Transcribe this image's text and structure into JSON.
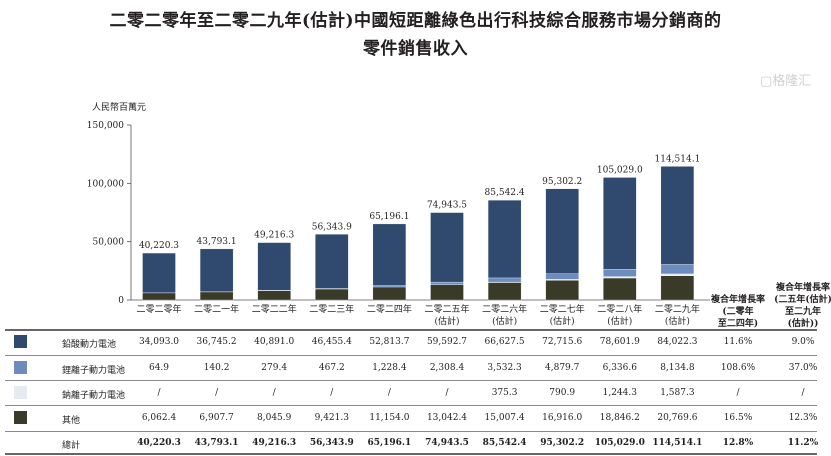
{
  "title_line1": "二零二零年至二零二九年(估計)中國短距離綠色出行科技綜合服務市場分銷商的",
  "title_line2": "零件銷售收入",
  "chart_data": {
    "type": "bar",
    "stacked": true,
    "ylabel": "人民幣百萬元",
    "ylim": [
      0,
      150000
    ],
    "yticks": [
      0,
      50000,
      100000,
      150000
    ],
    "ytick_labels": [
      "0",
      "50,000",
      "100,000",
      "150,000"
    ],
    "categories": [
      {
        "line1": "二零二零年",
        "line2": ""
      },
      {
        "line1": "二零二一年",
        "line2": ""
      },
      {
        "line1": "二零二二年",
        "line2": ""
      },
      {
        "line1": "二零二三年",
        "line2": ""
      },
      {
        "line1": "二零二四年",
        "line2": ""
      },
      {
        "line1": "二零二五年",
        "line2": "(估計)"
      },
      {
        "line1": "二零二六年",
        "line2": "(估計)"
      },
      {
        "line1": "二零二七年",
        "line2": "(估計)"
      },
      {
        "line1": "二零二八年",
        "line2": "(估計)"
      },
      {
        "line1": "二零二九年",
        "line2": "(估計)"
      }
    ],
    "series": [
      {
        "name": "鉛酸動力電池",
        "color": "#2f4a6e",
        "values": [
          34093.0,
          36745.2,
          40891.0,
          46455.4,
          52813.7,
          59592.7,
          66627.5,
          72715.6,
          78601.9,
          84022.3
        ],
        "labels": [
          "34,093.0",
          "36,745.2",
          "40,891.0",
          "46,455.4",
          "52,813.7",
          "59,592.7",
          "66,627.5",
          "72,715.6",
          "78,601.9",
          "84,022.3"
        ],
        "cagr1": "11.6%",
        "cagr2": "9.0%"
      },
      {
        "name": "鋰離子動力電池",
        "color": "#6b8cbd",
        "values": [
          64.9,
          140.2,
          279.4,
          467.2,
          1228.4,
          2308.4,
          3532.3,
          4879.7,
          6336.6,
          8134.8
        ],
        "labels": [
          "64.9",
          "140.2",
          "279.4",
          "467.2",
          "1,228.4",
          "2,308.4",
          "3,532.3",
          "4,879.7",
          "6,336.6",
          "8,134.8"
        ],
        "cagr1": "108.6%",
        "cagr2": "37.0%"
      },
      {
        "name": "鈉離子動力電池",
        "color": "#e6ebf1",
        "values": [
          null,
          null,
          null,
          null,
          null,
          null,
          375.3,
          790.9,
          1244.3,
          1587.3
        ],
        "labels": [
          "/",
          "/",
          "/",
          "/",
          "/",
          "/",
          "375.3",
          "790.9",
          "1,244.3",
          "1,587.3"
        ],
        "cagr1": "/",
        "cagr2": "/"
      },
      {
        "name": "其他",
        "color": "#3a3a28",
        "values": [
          6062.4,
          6907.7,
          8045.9,
          9421.3,
          11154.0,
          13042.4,
          15007.4,
          16916.0,
          18846.2,
          20769.6
        ],
        "labels": [
          "6,062.4",
          "6,907.7",
          "8,045.9",
          "9,421.3",
          "11,154.0",
          "13,042.4",
          "15,007.4",
          "16,916.0",
          "18,846.2",
          "20,769.6"
        ],
        "cagr1": "16.5%",
        "cagr2": "12.3%"
      }
    ],
    "totals": {
      "name": "總計",
      "values": [
        40220.3,
        43793.1,
        49216.3,
        56343.9,
        65196.1,
        74943.5,
        85542.4,
        95302.2,
        105029.0,
        114514.1
      ],
      "labels": [
        "40,220.3",
        "43,793.1",
        "49,216.3",
        "56,343.9",
        "65,196.1",
        "74,943.5",
        "85,542.4",
        "95,302.2",
        "105,029.0",
        "114,514.1"
      ],
      "cagr1": "12.8%",
      "cagr2": "11.2%"
    },
    "cagr_headers": [
      [
        "複合年增長率",
        "(二零年",
        "至二四年)"
      ],
      [
        "複合年增長率",
        "(二五年(估計)",
        "至二九年",
        "(估計))"
      ]
    ],
    "stack_order_bottom_up": [
      "其他",
      "鈉離子動力電池",
      "鋰離子動力電池",
      "鉛酸動力電池"
    ]
  },
  "watermark": "格隆汇"
}
